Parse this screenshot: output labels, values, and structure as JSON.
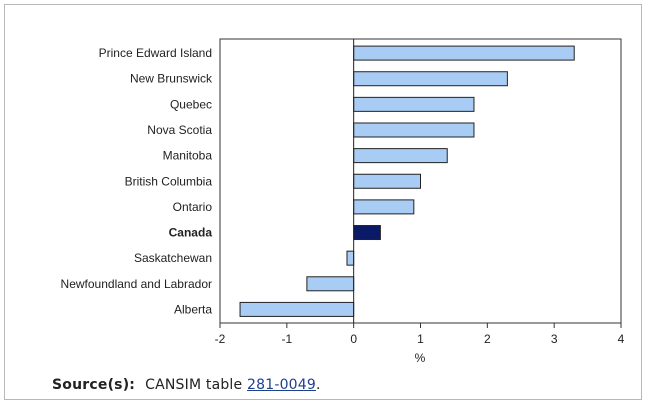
{
  "chart_data": {
    "type": "bar",
    "orientation": "horizontal",
    "categories": [
      "Prince Edward Island",
      "New Brunswick",
      "Quebec",
      "Nova Scotia",
      "Manitoba",
      "British Columbia",
      "Ontario",
      "Canada",
      "Saskatchewan",
      "Newfoundland and Labrador",
      "Alberta"
    ],
    "values": [
      3.3,
      2.3,
      1.8,
      1.8,
      1.4,
      1.0,
      0.9,
      0.4,
      -0.1,
      -0.7,
      -1.7
    ],
    "highlight": "Canada",
    "xlabel": "%",
    "xlim": [
      -2,
      4
    ],
    "xticks": [
      "-2",
      "-1",
      "0",
      "1",
      "2",
      "3",
      "4"
    ],
    "grid": false,
    "colors": {
      "bar": "#a8ccf4",
      "highlight": "#0a1a66",
      "outline": "#222222"
    }
  },
  "source": {
    "label": "Source(s):",
    "prefix": "CANSIM table ",
    "link": "281-0049",
    "suffix": "."
  }
}
